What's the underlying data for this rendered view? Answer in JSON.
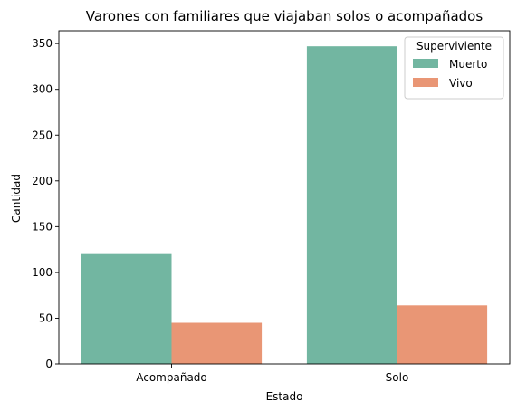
{
  "chart_data": {
    "type": "bar",
    "title": "Varones con familiares que viajaban solos o acompañados",
    "xlabel": "Estado",
    "ylabel": "Cantidad",
    "categories": [
      "Acompañado",
      "Solo"
    ],
    "series": [
      {
        "name": "Muerto",
        "values": [
          121,
          347
        ],
        "color": "#72b6a1"
      },
      {
        "name": "Vivo",
        "values": [
          45,
          64
        ],
        "color": "#e99675"
      }
    ],
    "ylim": [
      0,
      364
    ],
    "yticks": [
      0,
      50,
      100,
      150,
      200,
      250,
      300,
      350
    ],
    "legend": {
      "title": "Superviviente",
      "position": "top-right"
    },
    "grid": false
  }
}
